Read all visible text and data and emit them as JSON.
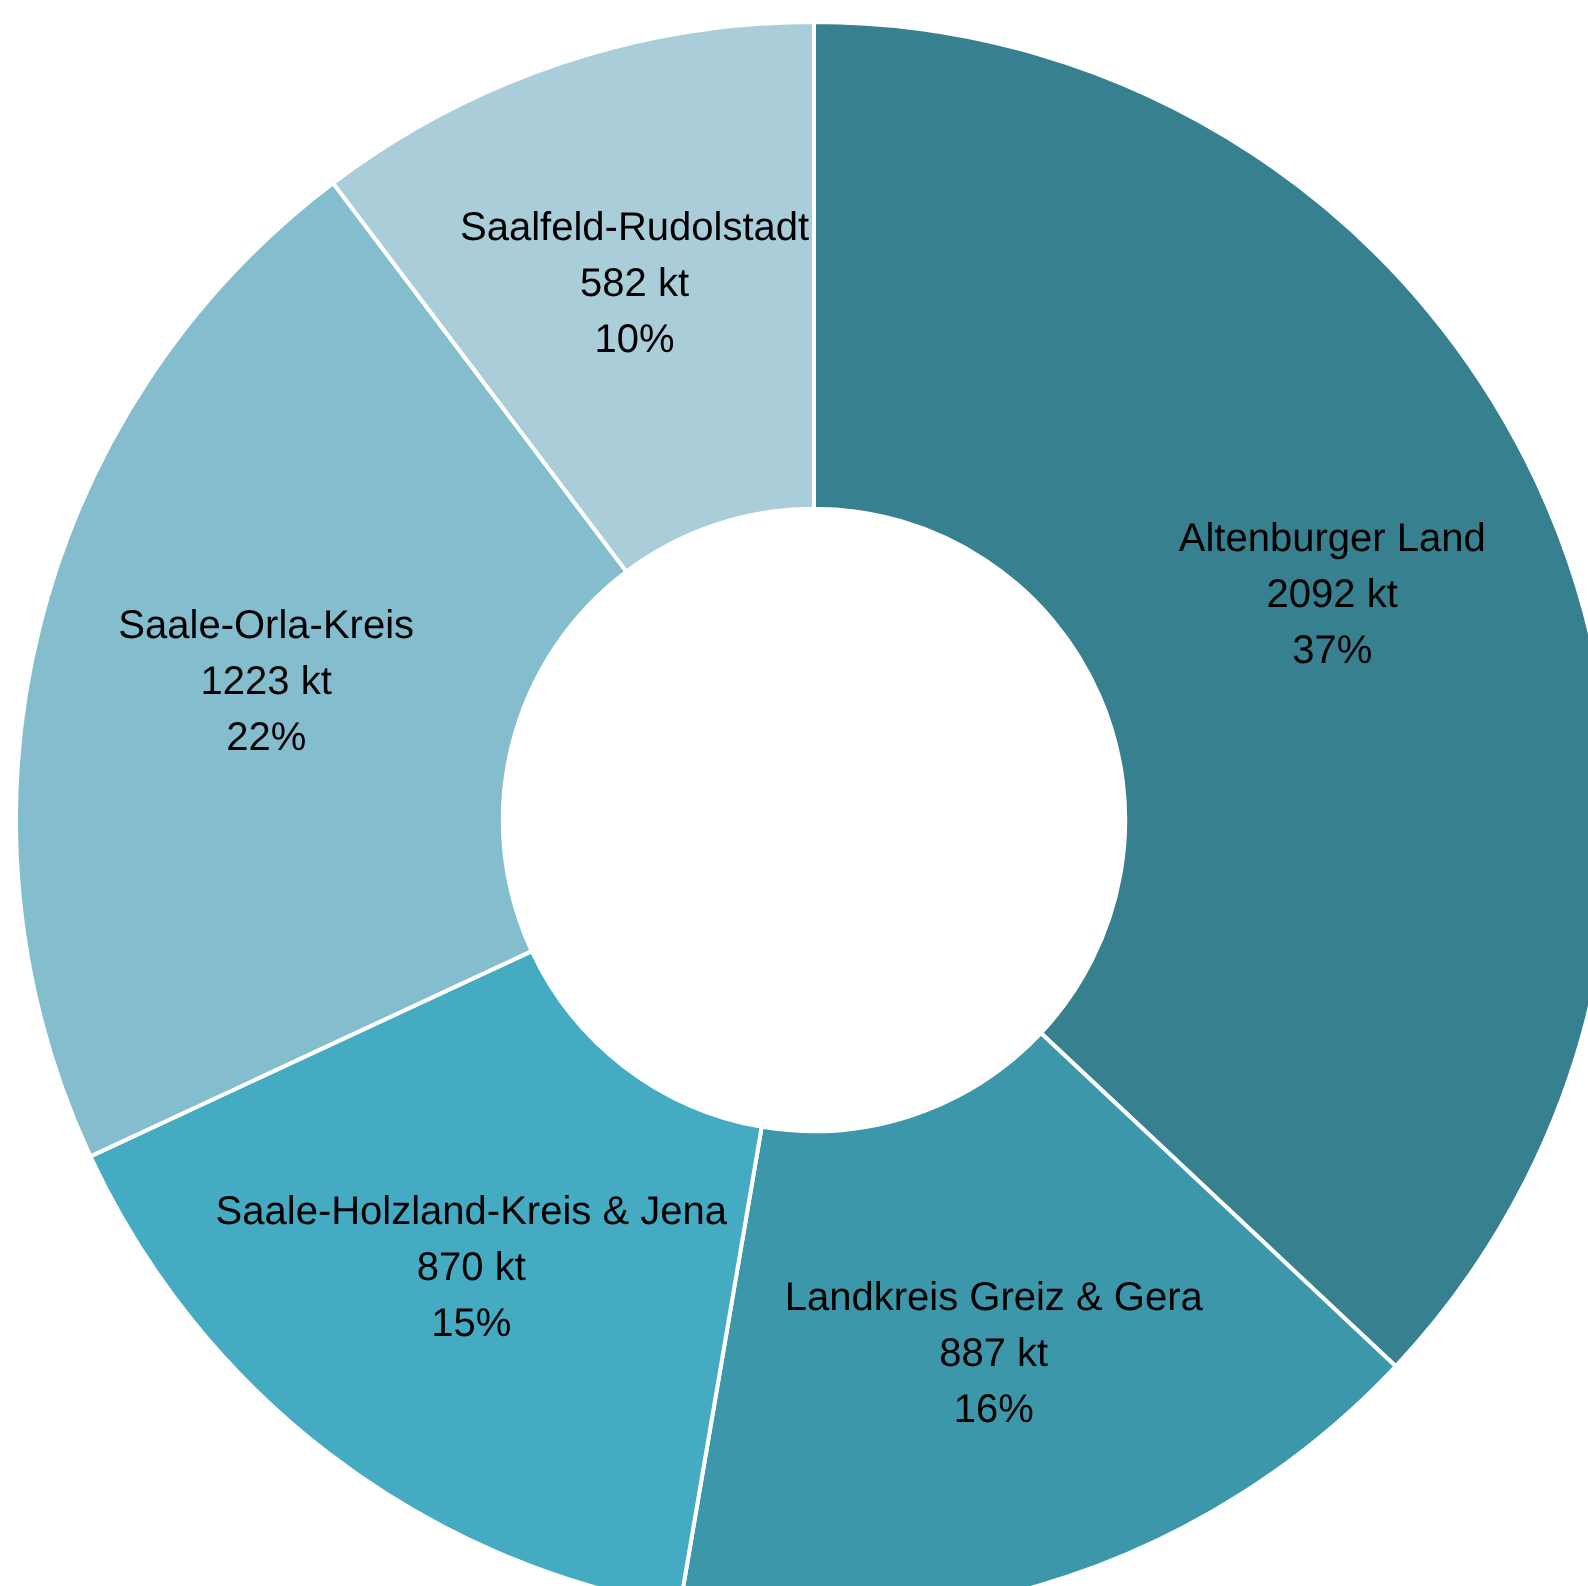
{
  "chart_data": {
    "type": "donut",
    "categories": [
      "Altenburger Land",
      "Landkreis Greiz & Gera",
      "Saale-Holzland-Kreis & Jena",
      "Saale-Orla-Kreis",
      "Saalfeld-Rudolstadt"
    ],
    "values": [
      2092,
      887,
      870,
      1223,
      582
    ],
    "colors": [
      "#37808f",
      "#3c97aa",
      "#44abc2",
      "#84bece",
      "#a9cdd9"
    ],
    "value_labels": [
      "2092 kt\n37%",
      "887 kt\n16%",
      "870 kt\n15%",
      "1223 kt\n22%",
      "582 kt\n10%"
    ],
    "legend": false
  }
}
